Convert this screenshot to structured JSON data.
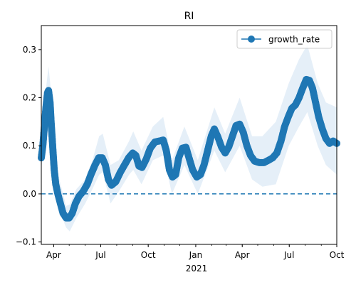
{
  "chart_data": {
    "type": "line",
    "title": "RI",
    "xlabel": "",
    "ylabel": "",
    "x_tick_labels": [
      "Apr",
      "Jul",
      "Oct",
      "Jan",
      "Apr",
      "Jul",
      "Oct"
    ],
    "x_tick_positions": [
      "2020-04-01",
      "2020-07-01",
      "2020-10-01",
      "2021-01-01",
      "2021-04-01",
      "2021-07-01",
      "2021-10-01"
    ],
    "x_year_label": "2021",
    "xlim": [
      "2020-03-08",
      "2021-10-01"
    ],
    "y_ticks": [
      -0.1,
      0.0,
      0.1,
      0.2,
      0.3
    ],
    "y_tick_labels": [
      "−0.1",
      "0.0",
      "0.1",
      "0.2",
      "0.3"
    ],
    "ylim": [
      -0.105,
      0.35
    ],
    "reference_line": {
      "y": 0.0,
      "style": "dashed"
    },
    "grid": false,
    "legend": {
      "position": "top-right",
      "entries": [
        "growth_rate"
      ]
    },
    "colors": {
      "series": "#1f77b4",
      "band": "#c6dbef"
    },
    "series": [
      {
        "name": "growth_rate",
        "marker": "circle",
        "points": [
          [
            "2020-03-08",
            0.075
          ],
          [
            "2020-03-11",
            0.1
          ],
          [
            "2020-03-14",
            0.14
          ],
          [
            "2020-03-17",
            0.18
          ],
          [
            "2020-03-20",
            0.21
          ],
          [
            "2020-03-22",
            0.215
          ],
          [
            "2020-03-25",
            0.19
          ],
          [
            "2020-03-27",
            0.15
          ],
          [
            "2020-03-30",
            0.1
          ],
          [
            "2020-04-02",
            0.05
          ],
          [
            "2020-04-05",
            0.02
          ],
          [
            "2020-04-09",
            0.0
          ],
          [
            "2020-04-14",
            -0.02
          ],
          [
            "2020-04-19",
            -0.04
          ],
          [
            "2020-04-25",
            -0.05
          ],
          [
            "2020-05-01",
            -0.05
          ],
          [
            "2020-05-07",
            -0.04
          ],
          [
            "2020-05-13",
            -0.02
          ],
          [
            "2020-05-20",
            -0.005
          ],
          [
            "2020-05-28",
            0.005
          ],
          [
            "2020-06-05",
            0.02
          ],
          [
            "2020-06-12",
            0.04
          ],
          [
            "2020-06-20",
            0.06
          ],
          [
            "2020-06-27",
            0.075
          ],
          [
            "2020-07-04",
            0.075
          ],
          [
            "2020-07-10",
            0.06
          ],
          [
            "2020-07-16",
            0.03
          ],
          [
            "2020-07-22",
            0.018
          ],
          [
            "2020-07-30",
            0.025
          ],
          [
            "2020-08-08",
            0.045
          ],
          [
            "2020-08-16",
            0.06
          ],
          [
            "2020-08-24",
            0.075
          ],
          [
            "2020-09-01",
            0.085
          ],
          [
            "2020-09-07",
            0.08
          ],
          [
            "2020-09-13",
            0.058
          ],
          [
            "2020-09-19",
            0.055
          ],
          [
            "2020-09-27",
            0.072
          ],
          [
            "2020-10-05",
            0.095
          ],
          [
            "2020-10-14",
            0.108
          ],
          [
            "2020-10-23",
            0.11
          ],
          [
            "2020-10-30",
            0.112
          ],
          [
            "2020-11-05",
            0.09
          ],
          [
            "2020-11-11",
            0.05
          ],
          [
            "2020-11-17",
            0.035
          ],
          [
            "2020-11-23",
            0.04
          ],
          [
            "2020-11-29",
            0.075
          ],
          [
            "2020-12-06",
            0.095
          ],
          [
            "2020-12-13",
            0.097
          ],
          [
            "2020-12-19",
            0.075
          ],
          [
            "2020-12-26",
            0.05
          ],
          [
            "2021-01-03",
            0.035
          ],
          [
            "2021-01-10",
            0.04
          ],
          [
            "2021-01-17",
            0.06
          ],
          [
            "2021-01-24",
            0.09
          ],
          [
            "2021-01-31",
            0.12
          ],
          [
            "2021-02-06",
            0.135
          ],
          [
            "2021-02-13",
            0.118
          ],
          [
            "2021-02-20",
            0.097
          ],
          [
            "2021-02-27",
            0.085
          ],
          [
            "2021-03-06",
            0.098
          ],
          [
            "2021-03-13",
            0.12
          ],
          [
            "2021-03-20",
            0.142
          ],
          [
            "2021-03-27",
            0.145
          ],
          [
            "2021-04-03",
            0.128
          ],
          [
            "2021-04-10",
            0.1
          ],
          [
            "2021-04-17",
            0.08
          ],
          [
            "2021-04-25",
            0.068
          ],
          [
            "2021-05-04",
            0.065
          ],
          [
            "2021-05-13",
            0.065
          ],
          [
            "2021-05-22",
            0.07
          ],
          [
            "2021-05-30",
            0.075
          ],
          [
            "2021-06-07",
            0.085
          ],
          [
            "2021-06-15",
            0.11
          ],
          [
            "2021-06-22",
            0.14
          ],
          [
            "2021-06-29",
            0.16
          ],
          [
            "2021-07-06",
            0.178
          ],
          [
            "2021-07-13",
            0.185
          ],
          [
            "2021-07-20",
            0.2
          ],
          [
            "2021-07-27",
            0.22
          ],
          [
            "2021-08-03",
            0.238
          ],
          [
            "2021-08-09",
            0.236
          ],
          [
            "2021-08-15",
            0.22
          ],
          [
            "2021-08-21",
            0.19
          ],
          [
            "2021-08-27",
            0.16
          ],
          [
            "2021-09-03",
            0.135
          ],
          [
            "2021-09-10",
            0.115
          ],
          [
            "2021-09-17",
            0.105
          ],
          [
            "2021-09-24",
            0.11
          ],
          [
            "2021-10-01",
            0.105
          ]
        ],
        "band": [
          [
            "2020-03-08",
            0.055,
            0.1
          ],
          [
            "2020-03-15",
            0.1,
            0.2
          ],
          [
            "2020-03-22",
            0.17,
            0.265
          ],
          [
            "2020-03-28",
            0.11,
            0.2
          ],
          [
            "2020-04-02",
            0.02,
            0.09
          ],
          [
            "2020-04-12",
            -0.035,
            0.03
          ],
          [
            "2020-04-25",
            -0.07,
            -0.025
          ],
          [
            "2020-05-02",
            -0.078,
            -0.022
          ],
          [
            "2020-05-15",
            -0.05,
            0.01
          ],
          [
            "2020-06-01",
            -0.02,
            0.03
          ],
          [
            "2020-06-15",
            0.01,
            0.07
          ],
          [
            "2020-06-28",
            0.04,
            0.12
          ],
          [
            "2020-07-05",
            0.045,
            0.125
          ],
          [
            "2020-07-20",
            -0.02,
            0.06
          ],
          [
            "2020-08-05",
            0.005,
            0.07
          ],
          [
            "2020-08-25",
            0.04,
            0.11
          ],
          [
            "2020-09-02",
            0.05,
            0.13
          ],
          [
            "2020-09-18",
            0.02,
            0.09
          ],
          [
            "2020-10-10",
            0.07,
            0.14
          ],
          [
            "2020-10-30",
            0.08,
            0.16
          ],
          [
            "2020-11-16",
            0.0,
            0.07
          ],
          [
            "2020-12-10",
            0.06,
            0.14
          ],
          [
            "2021-01-05",
            0.0,
            0.07
          ],
          [
            "2021-02-06",
            0.09,
            0.18
          ],
          [
            "2021-02-27",
            0.045,
            0.125
          ],
          [
            "2021-03-27",
            0.1,
            0.2
          ],
          [
            "2021-04-20",
            0.03,
            0.12
          ],
          [
            "2021-05-10",
            0.015,
            0.12
          ],
          [
            "2021-06-05",
            0.02,
            0.15
          ],
          [
            "2021-06-30",
            0.1,
            0.23
          ],
          [
            "2021-07-20",
            0.14,
            0.28
          ],
          [
            "2021-08-05",
            0.17,
            0.31
          ],
          [
            "2021-08-25",
            0.1,
            0.23
          ],
          [
            "2021-09-10",
            0.06,
            0.19
          ],
          [
            "2021-10-01",
            0.04,
            0.18
          ]
        ]
      }
    ]
  }
}
